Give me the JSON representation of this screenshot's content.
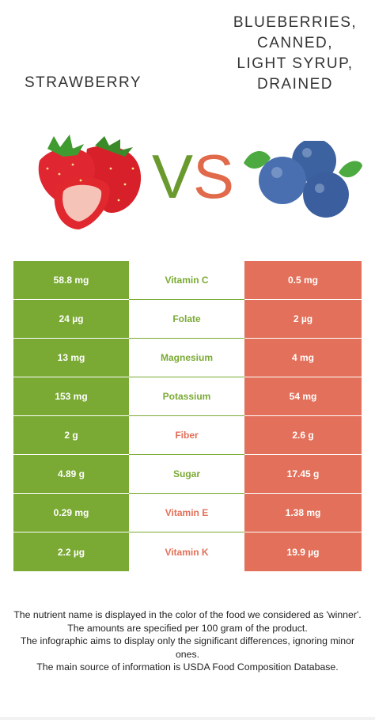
{
  "header": {
    "left_food": "STRAWBERRY",
    "right_food": "BLUEBERRIES,\nCANNED,\nLIGHT SYRUP,\nDRAINED",
    "vs_v": "V",
    "vs_s": "S",
    "left_image_icon": "strawberry-image",
    "right_image_icon": "blueberries-image"
  },
  "colors": {
    "left": "#7aaa34",
    "right": "#e2705a"
  },
  "rows": [
    {
      "left": "58.8 mg",
      "nutrient": "Vitamin C",
      "right": "0.5 mg",
      "winner": "left"
    },
    {
      "left": "24 µg",
      "nutrient": "Folate",
      "right": "2 µg",
      "winner": "left"
    },
    {
      "left": "13 mg",
      "nutrient": "Magnesium",
      "right": "4 mg",
      "winner": "left"
    },
    {
      "left": "153 mg",
      "nutrient": "Potassium",
      "right": "54 mg",
      "winner": "left"
    },
    {
      "left": "2 g",
      "nutrient": "Fiber",
      "right": "2.6 g",
      "winner": "right"
    },
    {
      "left": "4.89 g",
      "nutrient": "Sugar",
      "right": "17.45 g",
      "winner": "left"
    },
    {
      "left": "0.29 mg",
      "nutrient": "Vitamin E",
      "right": "1.38 mg",
      "winner": "right"
    },
    {
      "left": "2.2 µg",
      "nutrient": "Vitamin K",
      "right": "19.9 µg",
      "winner": "right"
    }
  ],
  "footer": [
    "The nutrient name is displayed in the color of the food we considered as 'winner'.",
    "The amounts are specified per 100 gram of the product.",
    "The infographic aims to display only the significant differences, ignoring minor ones.",
    "The main source of information is USDA Food Composition Database."
  ]
}
